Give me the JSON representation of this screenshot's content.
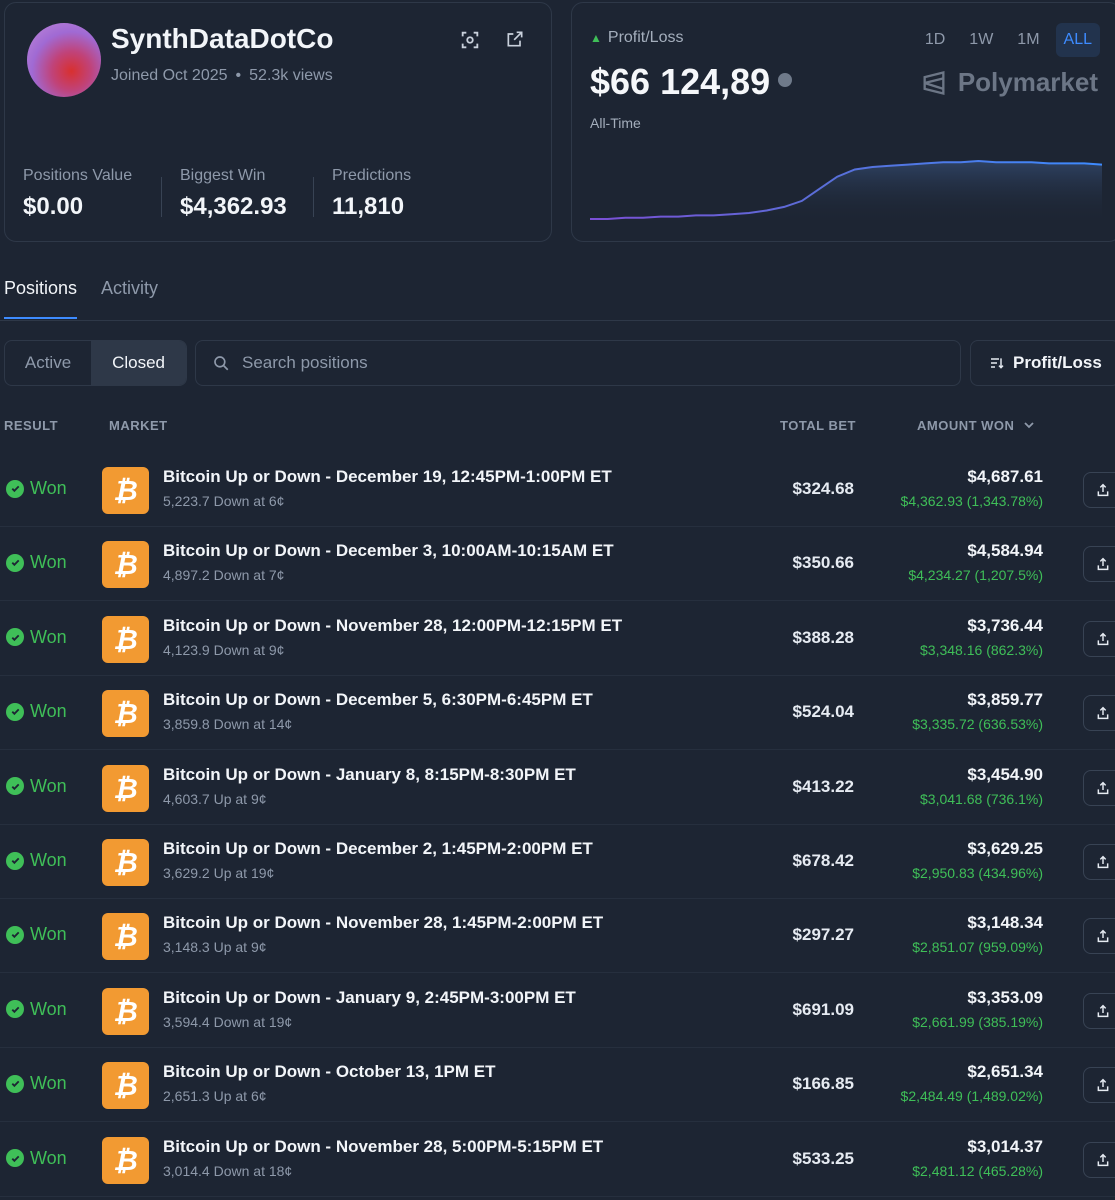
{
  "profile": {
    "username": "SynthDataDotCo",
    "joined": "Joined Oct 2025",
    "views": "52.3k views",
    "stats": [
      {
        "label": "Positions Value",
        "value": "$0.00"
      },
      {
        "label": "Biggest Win",
        "value": "$4,362.93"
      },
      {
        "label": "Predictions",
        "value": "11,810"
      }
    ],
    "icons": [
      "scan-icon",
      "external-link-icon"
    ]
  },
  "pnl": {
    "label": "Profit/Loss",
    "value": "$66 124,89",
    "period": "All-Time",
    "brand": "Polymarket",
    "ranges": [
      "1D",
      "1W",
      "1M",
      "ALL"
    ],
    "active_range": "ALL",
    "line_colors": [
      "#7b4fd6",
      "#3d8bff"
    ],
    "chart_data": {
      "type": "line",
      "values": [
        5,
        5,
        6,
        6,
        7,
        7,
        8,
        8,
        9,
        10,
        12,
        15,
        20,
        30,
        40,
        46,
        48,
        49,
        50,
        51,
        52,
        52,
        53,
        52,
        52,
        52,
        51,
        51,
        51,
        50
      ]
    }
  },
  "tabs": [
    "Positions",
    "Activity"
  ],
  "filters": {
    "segments": [
      "Active",
      "Closed"
    ],
    "active_segment": "Closed",
    "search_placeholder": "Search positions",
    "sort_label": "Profit/Loss"
  },
  "table": {
    "headers": {
      "result": "RESULT",
      "market": "MARKET",
      "total_bet": "TOTAL BET",
      "amount_won": "AMOUNT WON"
    },
    "rows": [
      {
        "result": "Won",
        "title": "Bitcoin Up or Down - December 19, 12:45PM-1:00PM ET",
        "sub": "5,223.7 Down at 6¢",
        "bet": "$324.68",
        "won": "$4,687.61",
        "gain": "$4,362.93 (1,343.78%)"
      },
      {
        "result": "Won",
        "title": "Bitcoin Up or Down - December 3, 10:00AM-10:15AM ET",
        "sub": "4,897.2 Down at 7¢",
        "bet": "$350.66",
        "won": "$4,584.94",
        "gain": "$4,234.27 (1,207.5%)"
      },
      {
        "result": "Won",
        "title": "Bitcoin Up or Down - November 28, 12:00PM-12:15PM ET",
        "sub": "4,123.9 Down at 9¢",
        "bet": "$388.28",
        "won": "$3,736.44",
        "gain": "$3,348.16 (862.3%)"
      },
      {
        "result": "Won",
        "title": "Bitcoin Up or Down - December 5, 6:30PM-6:45PM ET",
        "sub": "3,859.8 Down at 14¢",
        "bet": "$524.04",
        "won": "$3,859.77",
        "gain": "$3,335.72 (636.53%)"
      },
      {
        "result": "Won",
        "title": "Bitcoin Up or Down - January 8, 8:15PM-8:30PM ET",
        "sub": "4,603.7 Up at 9¢",
        "bet": "$413.22",
        "won": "$3,454.90",
        "gain": "$3,041.68 (736.1%)"
      },
      {
        "result": "Won",
        "title": "Bitcoin Up or Down - December 2, 1:45PM-2:00PM ET",
        "sub": "3,629.2 Up at 19¢",
        "bet": "$678.42",
        "won": "$3,629.25",
        "gain": "$2,950.83 (434.96%)"
      },
      {
        "result": "Won",
        "title": "Bitcoin Up or Down - November 28, 1:45PM-2:00PM ET",
        "sub": "3,148.3 Up at 9¢",
        "bet": "$297.27",
        "won": "$3,148.34",
        "gain": "$2,851.07 (959.09%)"
      },
      {
        "result": "Won",
        "title": "Bitcoin Up or Down - January 9, 2:45PM-3:00PM ET",
        "sub": "3,594.4 Down at 19¢",
        "bet": "$691.09",
        "won": "$3,353.09",
        "gain": "$2,661.99 (385.19%)"
      },
      {
        "result": "Won",
        "title": "Bitcoin Up or Down - October 13, 1PM ET",
        "sub": "2,651.3 Up at 6¢",
        "bet": "$166.85",
        "won": "$2,651.34",
        "gain": "$2,484.49 (1,489.02%)"
      },
      {
        "result": "Won",
        "title": "Bitcoin Up or Down - November 28, 5:00PM-5:15PM ET",
        "sub": "3,014.4 Down at 18¢",
        "bet": "$533.25",
        "won": "$3,014.37",
        "gain": "$2,481.12 (465.28%)"
      }
    ]
  }
}
